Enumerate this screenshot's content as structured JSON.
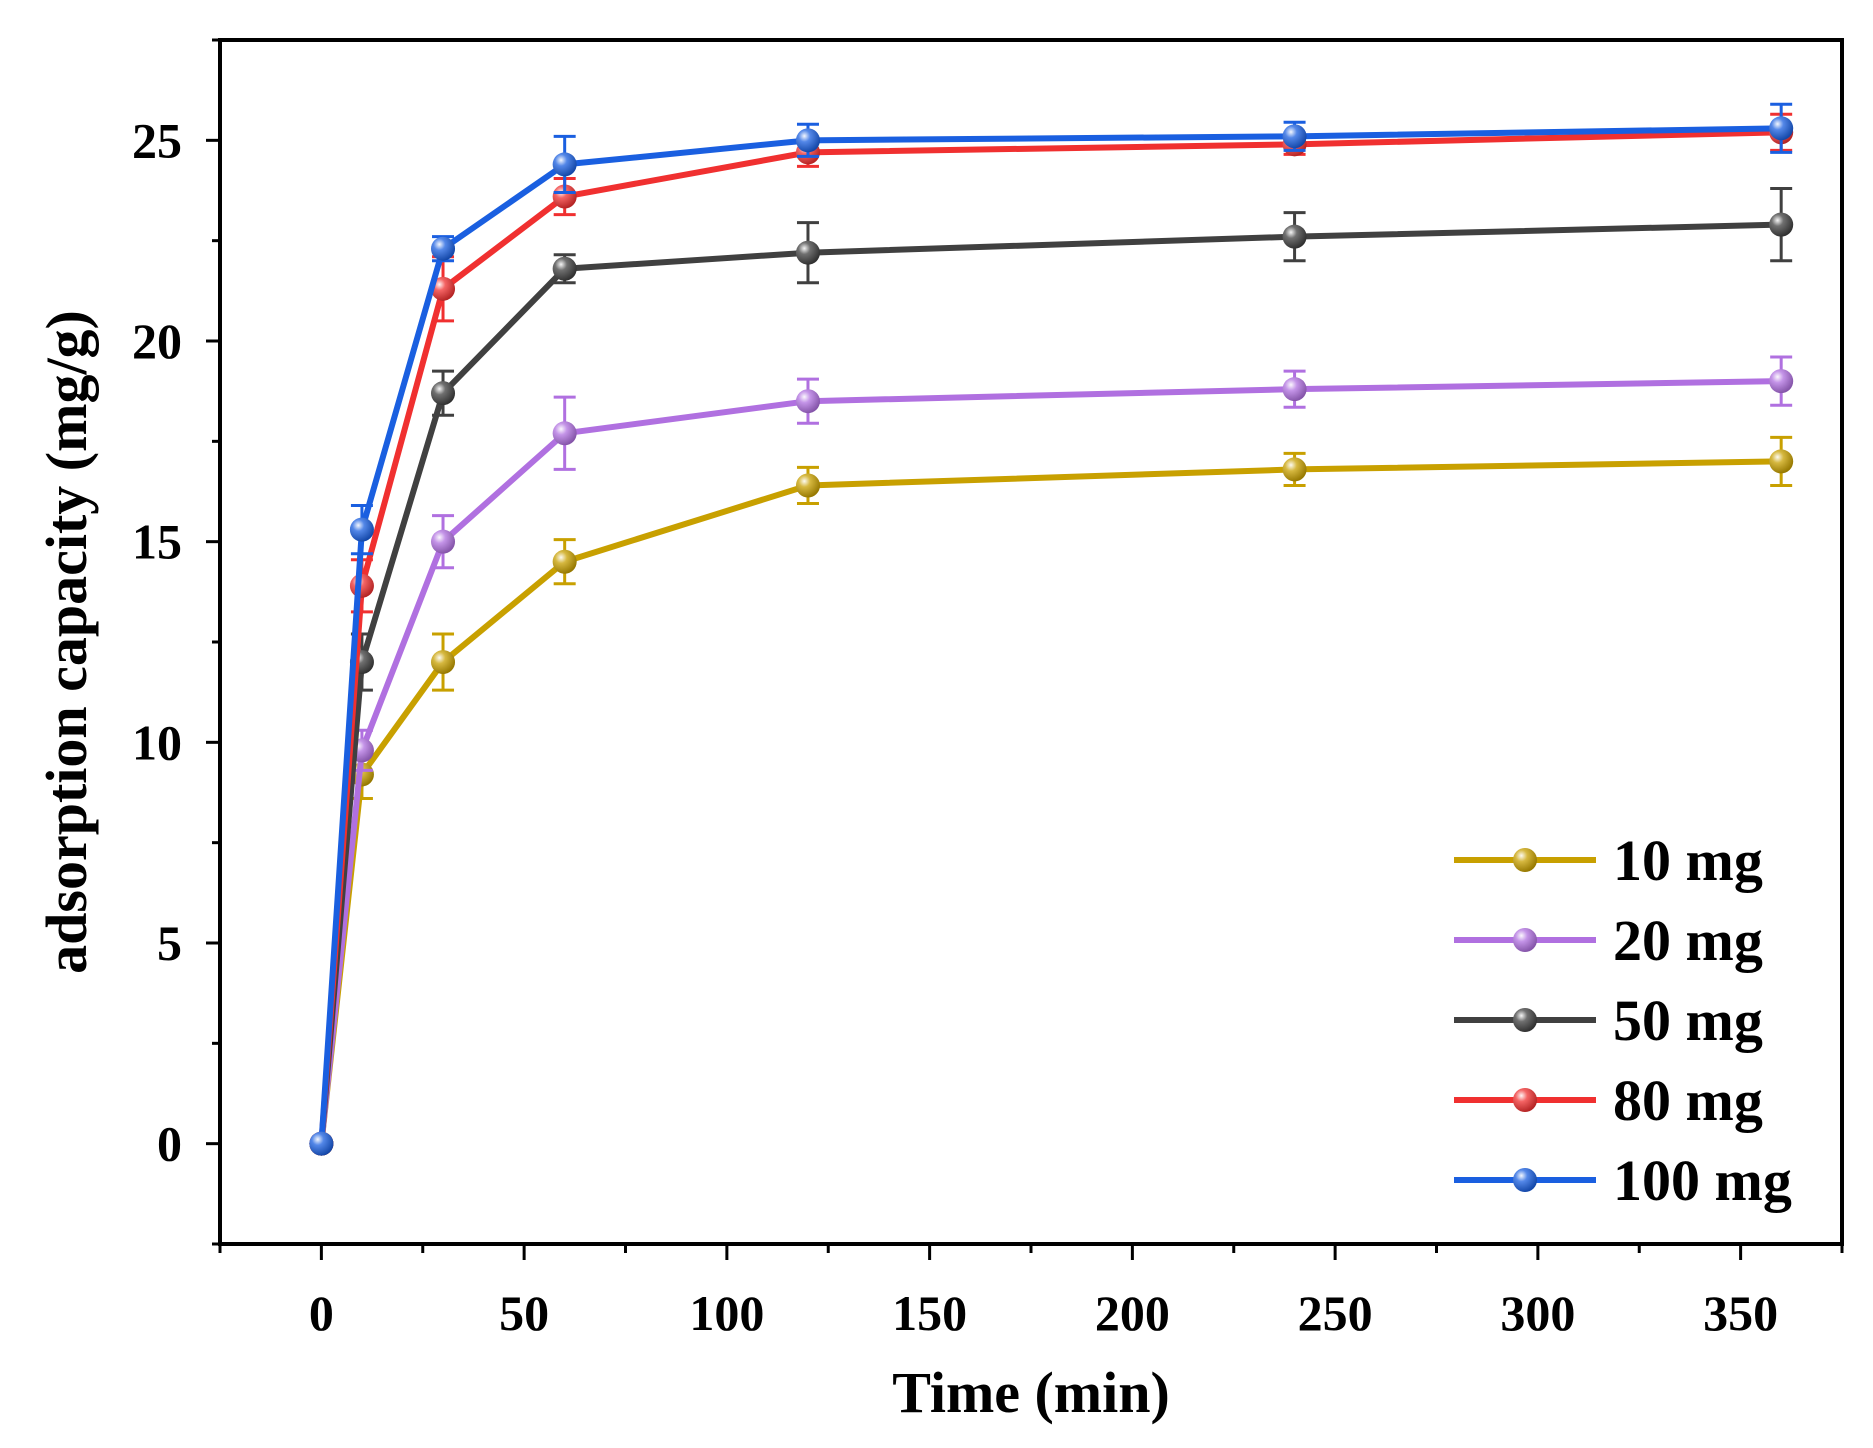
{
  "chart_data": {
    "type": "line",
    "title": "",
    "xlabel": "Time (min)",
    "ylabel": "adsorption capacity (mg/g)",
    "xlim": [
      -25,
      375
    ],
    "ylim": [
      -2.5,
      27.5
    ],
    "xticks": [
      0,
      50,
      100,
      150,
      200,
      250,
      300,
      350
    ],
    "xtick_labels": [
      "0",
      "50",
      "100",
      "150",
      "200",
      "250",
      "300",
      "350"
    ],
    "yticks": [
      0,
      5,
      10,
      15,
      20,
      25
    ],
    "ytick_labels": [
      "0",
      "5",
      "10",
      "15",
      "20",
      "25"
    ],
    "x": [
      0,
      10,
      30,
      60,
      120,
      240,
      360
    ],
    "grid": false,
    "legend_position": "bottom-right",
    "series": [
      {
        "name": "10 mg",
        "color": "#C8A000",
        "values": [
          0,
          9.2,
          12.0,
          14.5,
          16.4,
          16.8,
          17.0
        ],
        "errors": [
          0,
          0.6,
          0.7,
          0.55,
          0.45,
          0.4,
          0.6
        ]
      },
      {
        "name": "20 mg",
        "color": "#B070E0",
        "values": [
          0,
          9.8,
          15.0,
          17.7,
          18.5,
          18.8,
          19.0
        ],
        "errors": [
          0,
          0.5,
          0.65,
          0.9,
          0.55,
          0.45,
          0.6
        ]
      },
      {
        "name": "50 mg",
        "color": "#404040",
        "values": [
          0,
          12.0,
          18.7,
          21.8,
          22.2,
          22.6,
          22.9
        ],
        "errors": [
          0,
          0.7,
          0.55,
          0.35,
          0.75,
          0.6,
          0.9
        ]
      },
      {
        "name": "80 mg",
        "color": "#F03030",
        "values": [
          0,
          13.9,
          21.3,
          23.6,
          24.7,
          24.9,
          25.2
        ],
        "errors": [
          0,
          0.65,
          0.8,
          0.45,
          0.35,
          0.25,
          0.45
        ]
      },
      {
        "name": "100 mg",
        "color": "#1A5FE0",
        "values": [
          0,
          15.3,
          22.3,
          24.4,
          25.0,
          25.1,
          25.3
        ],
        "errors": [
          0,
          0.6,
          0.3,
          0.7,
          0.4,
          0.35,
          0.6
        ]
      }
    ]
  }
}
